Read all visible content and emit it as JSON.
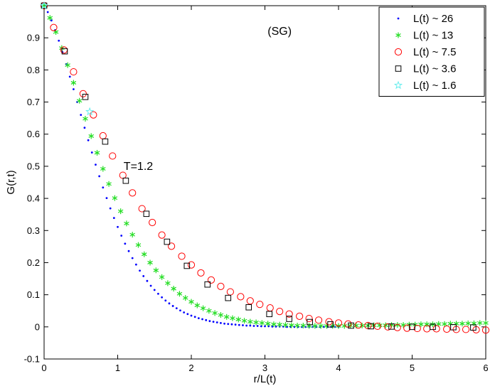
{
  "chart_data": {
    "type": "scatter",
    "title": "",
    "xlabel": "r/L(t)",
    "ylabel": "G(r,t)",
    "xlim": [
      0,
      6
    ],
    "ylim": [
      -0.1,
      1.0
    ],
    "grid": false,
    "legend_position": "top-right",
    "x_ticks": [
      "0",
      "1",
      "2",
      "3",
      "4",
      "5",
      "6"
    ],
    "y_ticks": [
      "-0.1",
      "0",
      "0.1",
      "0.2",
      "0.3",
      "0.4",
      "0.5",
      "0.6",
      "0.7",
      "0.8",
      "0.9"
    ],
    "annotations": [
      {
        "text": "(SG)",
        "x": 3.2,
        "y": 0.92
      },
      {
        "text": "T=1.2",
        "x": 1.28,
        "y": 0.5
      }
    ],
    "series": [
      {
        "name": "L(t) ~ 26",
        "marker": "dot",
        "color": "#0000ff",
        "x": [
          0.0,
          0.05,
          0.1,
          0.15,
          0.2,
          0.25,
          0.3,
          0.35,
          0.4,
          0.45,
          0.5,
          0.55,
          0.6,
          0.65,
          0.7,
          0.75,
          0.8,
          0.85,
          0.9,
          0.95,
          1.0,
          1.05,
          1.1,
          1.15,
          1.2,
          1.25,
          1.3,
          1.35,
          1.4,
          1.45,
          1.5,
          1.55,
          1.6,
          1.65,
          1.7,
          1.75,
          1.8,
          1.85,
          1.9,
          1.95,
          2.0,
          2.05,
          2.1,
          2.15,
          2.2,
          2.25,
          2.3,
          2.35,
          2.4,
          2.45,
          2.5,
          2.55,
          2.6,
          2.65,
          2.7,
          2.75,
          2.8,
          2.85,
          2.9,
          2.95,
          3.0,
          3.05,
          3.1,
          3.15,
          3.2,
          3.25,
          3.3,
          3.35,
          3.4,
          3.45,
          3.5,
          3.55,
          3.6,
          3.65,
          3.7,
          3.75,
          3.8,
          3.85,
          3.9,
          3.95,
          4.0
        ],
        "y": [
          1.0,
          0.98,
          0.954,
          0.924,
          0.891,
          0.855,
          0.818,
          0.779,
          0.74,
          0.7,
          0.66,
          0.62,
          0.581,
          0.543,
          0.505,
          0.469,
          0.434,
          0.401,
          0.369,
          0.339,
          0.311,
          0.284,
          0.259,
          0.236,
          0.214,
          0.194,
          0.175,
          0.158,
          0.143,
          0.128,
          0.115,
          0.103,
          0.092,
          0.082,
          0.073,
          0.065,
          0.058,
          0.051,
          0.045,
          0.04,
          0.035,
          0.031,
          0.027,
          0.024,
          0.021,
          0.018,
          0.016,
          0.014,
          0.012,
          0.01,
          0.009,
          0.008,
          0.007,
          0.006,
          0.005,
          0.004,
          0.004,
          0.003,
          0.003,
          0.002,
          0.002,
          0.002,
          0.001,
          0.001,
          0.001,
          0.001,
          0.0,
          0.0,
          0.0,
          0.0,
          0.0,
          0.0,
          0.0,
          0.0,
          0.0,
          0.0,
          0.0,
          0.0,
          0.0,
          0.0,
          0.0
        ]
      },
      {
        "name": "L(t) ~ 13",
        "marker": "asterisk",
        "color": "#22dd22",
        "x": [
          0.0,
          0.08,
          0.16,
          0.24,
          0.32,
          0.4,
          0.48,
          0.56,
          0.64,
          0.72,
          0.8,
          0.88,
          0.96,
          1.04,
          1.12,
          1.2,
          1.28,
          1.36,
          1.44,
          1.52,
          1.6,
          1.68,
          1.76,
          1.84,
          1.92,
          2.0,
          2.08,
          2.16,
          2.24,
          2.32,
          2.4,
          2.48,
          2.56,
          2.64,
          2.72,
          2.8,
          2.88,
          2.96,
          3.04,
          3.12,
          3.2,
          3.28,
          3.36,
          3.44,
          3.52,
          3.6,
          3.68,
          3.76,
          3.84,
          3.92,
          4.0,
          4.08,
          4.16,
          4.24,
          4.32,
          4.4,
          4.48,
          4.56,
          4.64,
          4.72,
          4.8,
          4.88,
          4.96,
          5.04,
          5.12,
          5.2,
          5.28,
          5.36,
          5.44,
          5.52,
          5.6,
          5.68,
          5.76,
          5.84,
          5.92,
          6.0
        ],
        "y": [
          1.0,
          0.962,
          0.918,
          0.868,
          0.815,
          0.76,
          0.704,
          0.648,
          0.594,
          0.542,
          0.492,
          0.445,
          0.401,
          0.36,
          0.322,
          0.287,
          0.255,
          0.226,
          0.2,
          0.176,
          0.155,
          0.136,
          0.119,
          0.103,
          0.09,
          0.078,
          0.067,
          0.058,
          0.05,
          0.043,
          0.037,
          0.031,
          0.027,
          0.023,
          0.019,
          0.016,
          0.014,
          0.012,
          0.01,
          0.008,
          0.007,
          0.006,
          0.005,
          0.004,
          0.004,
          0.003,
          0.003,
          0.003,
          0.003,
          0.003,
          0.003,
          0.003,
          0.004,
          0.004,
          0.004,
          0.004,
          0.005,
          0.005,
          0.005,
          0.006,
          0.006,
          0.006,
          0.007,
          0.007,
          0.008,
          0.008,
          0.008,
          0.009,
          0.009,
          0.01,
          0.01,
          0.01,
          0.011,
          0.011,
          0.012,
          0.012
        ]
      },
      {
        "name": "L(t) ~ 7.5",
        "marker": "circle",
        "color": "#ff0000",
        "x": [
          0.0,
          0.13,
          0.27,
          0.4,
          0.53,
          0.67,
          0.8,
          0.93,
          1.07,
          1.2,
          1.33,
          1.47,
          1.6,
          1.73,
          1.87,
          2.0,
          2.13,
          2.27,
          2.4,
          2.53,
          2.67,
          2.8,
          2.93,
          3.07,
          3.2,
          3.33,
          3.47,
          3.6,
          3.73,
          3.87,
          4.0,
          4.13,
          4.27,
          4.4,
          4.53,
          4.67,
          4.8,
          4.93,
          5.07,
          5.2,
          5.33,
          5.47,
          5.6,
          5.73,
          5.87,
          6.0
        ],
        "y": [
          1.0,
          0.932,
          0.862,
          0.794,
          0.726,
          0.66,
          0.595,
          0.532,
          0.472,
          0.417,
          0.368,
          0.325,
          0.286,
          0.251,
          0.22,
          0.193,
          0.168,
          0.146,
          0.126,
          0.109,
          0.094,
          0.081,
          0.07,
          0.059,
          0.048,
          0.04,
          0.033,
          0.026,
          0.021,
          0.016,
          0.012,
          0.009,
          0.006,
          0.004,
          0.002,
          0.0,
          -0.002,
          -0.004,
          -0.005,
          -0.006,
          -0.006,
          -0.007,
          -0.008,
          -0.008,
          -0.009,
          -0.01
        ]
      },
      {
        "name": "L(t) ~ 3.6",
        "marker": "square",
        "color": "#000000",
        "x": [
          0.0,
          0.28,
          0.56,
          0.83,
          1.11,
          1.39,
          1.67,
          1.94,
          2.22,
          2.5,
          2.78,
          3.06,
          3.33,
          3.61,
          3.89,
          4.17,
          4.44,
          4.72,
          5.0,
          5.28,
          5.56,
          5.83
        ],
        "y": [
          1.0,
          0.858,
          0.716,
          0.577,
          0.455,
          0.352,
          0.265,
          0.19,
          0.132,
          0.09,
          0.061,
          0.04,
          0.025,
          0.015,
          0.008,
          0.004,
          0.002,
          0.001,
          0.0,
          0.0,
          -0.001,
          -0.002
        ]
      },
      {
        "name": "L(t) ~ 1.6",
        "marker": "star",
        "color": "#66eeee",
        "x": [
          0.0,
          0.62
        ],
        "y": [
          1.0,
          0.67
        ]
      }
    ]
  }
}
